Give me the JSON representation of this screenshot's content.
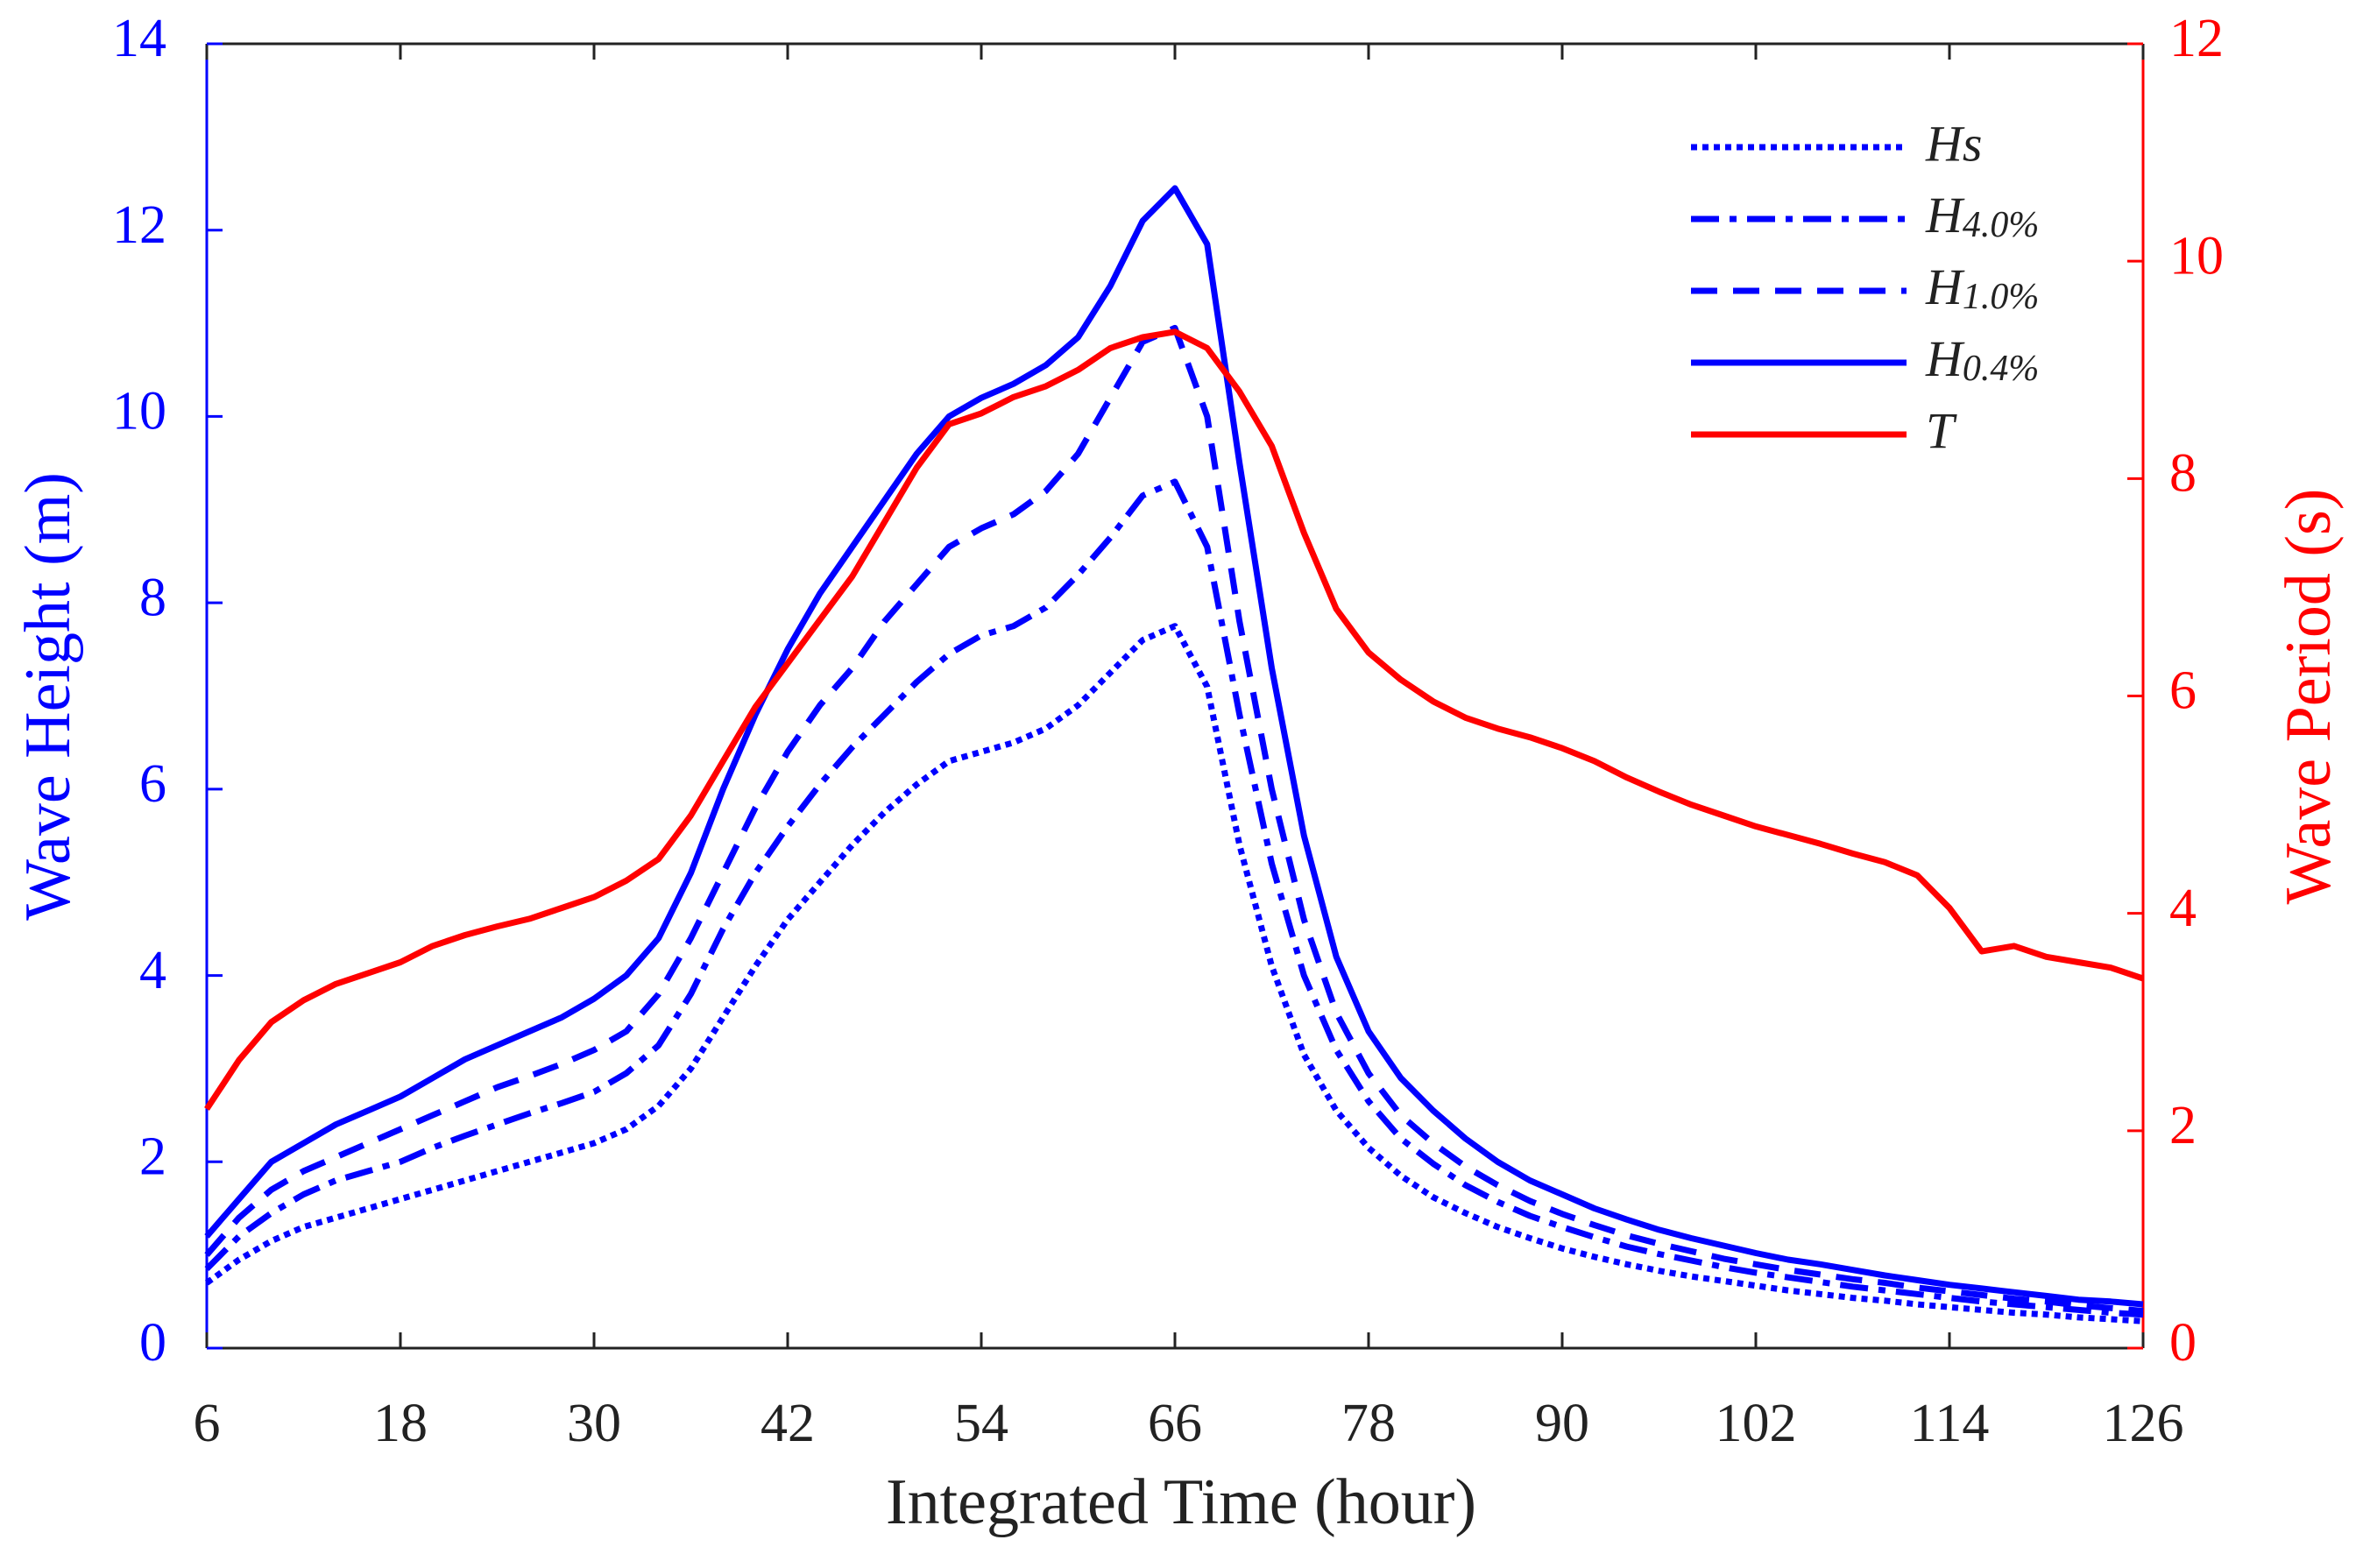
{
  "chart_data": {
    "type": "line",
    "xlabel": "Integrated Time (hour)",
    "ylabel": "Wave Height (m)",
    "y2label": "Wave Period (s)",
    "xlim": [
      6,
      126
    ],
    "xticks": [
      6,
      18,
      30,
      42,
      54,
      66,
      78,
      90,
      102,
      114,
      126
    ],
    "ylim": [
      0,
      14
    ],
    "yticks": [
      0,
      2,
      4,
      6,
      8,
      10,
      12,
      14
    ],
    "y2lim": [
      0,
      12
    ],
    "y2ticks": [
      0,
      2,
      4,
      6,
      8,
      10,
      12
    ],
    "ylabel_color": "#0000ff",
    "y2label_color": "#ff0000",
    "legend": "upper right",
    "grid": false,
    "x": [
      6,
      8,
      10,
      12,
      14,
      16,
      18,
      20,
      22,
      24,
      26,
      28,
      30,
      32,
      34,
      36,
      38,
      40,
      42,
      44,
      46,
      48,
      50,
      52,
      54,
      56,
      58,
      60,
      62,
      64,
      66,
      68,
      70,
      72,
      74,
      76,
      78,
      80,
      82,
      84,
      86,
      88,
      90,
      92,
      94,
      96,
      98,
      100,
      102,
      104,
      106,
      108,
      110,
      112,
      114,
      116,
      118,
      120,
      122,
      124,
      126
    ],
    "series": [
      {
        "name": "Hs",
        "color": "#0000ff",
        "dash": "dotted",
        "axis": "y",
        "values": [
          0.7,
          0.95,
          1.15,
          1.3,
          1.4,
          1.5,
          1.6,
          1.7,
          1.8,
          1.9,
          2.0,
          2.1,
          2.2,
          2.35,
          2.6,
          3.0,
          3.55,
          4.1,
          4.6,
          5.0,
          5.4,
          5.75,
          6.05,
          6.3,
          6.4,
          6.5,
          6.65,
          6.9,
          7.25,
          7.6,
          7.75,
          7.1,
          5.4,
          4.1,
          3.15,
          2.55,
          2.15,
          1.85,
          1.62,
          1.45,
          1.3,
          1.18,
          1.07,
          0.98,
          0.9,
          0.83,
          0.77,
          0.72,
          0.67,
          0.62,
          0.58,
          0.54,
          0.51,
          0.47,
          0.44,
          0.41,
          0.38,
          0.36,
          0.33,
          0.31,
          0.29
        ]
      },
      {
        "name": "H4.0%",
        "color": "#0000ff",
        "dash": "dashdot",
        "axis": "y",
        "values": [
          0.85,
          1.2,
          1.45,
          1.65,
          1.8,
          1.9,
          2.0,
          2.15,
          2.28,
          2.4,
          2.52,
          2.63,
          2.75,
          2.95,
          3.25,
          3.8,
          4.5,
          5.1,
          5.6,
          6.05,
          6.45,
          6.8,
          7.15,
          7.45,
          7.65,
          7.75,
          7.95,
          8.3,
          8.7,
          9.15,
          9.3,
          8.6,
          6.8,
          5.2,
          4.0,
          3.2,
          2.65,
          2.25,
          1.98,
          1.75,
          1.57,
          1.42,
          1.3,
          1.19,
          1.09,
          1.01,
          0.94,
          0.87,
          0.81,
          0.76,
          0.71,
          0.66,
          0.62,
          0.58,
          0.54,
          0.5,
          0.47,
          0.44,
          0.41,
          0.38,
          0.36
        ]
      },
      {
        "name": "H1.0%",
        "color": "#0000ff",
        "dash": "dashed",
        "axis": "y",
        "values": [
          1.0,
          1.4,
          1.7,
          1.9,
          2.05,
          2.2,
          2.35,
          2.5,
          2.65,
          2.8,
          2.92,
          3.05,
          3.2,
          3.4,
          3.8,
          4.4,
          5.1,
          5.8,
          6.4,
          6.9,
          7.3,
          7.8,
          8.2,
          8.6,
          8.8,
          8.95,
          9.2,
          9.6,
          10.2,
          10.8,
          10.95,
          10.0,
          7.8,
          6.0,
          4.6,
          3.6,
          2.95,
          2.5,
          2.2,
          1.95,
          1.75,
          1.58,
          1.44,
          1.32,
          1.21,
          1.12,
          1.04,
          0.96,
          0.9,
          0.84,
          0.79,
          0.74,
          0.7,
          0.65,
          0.61,
          0.57,
          0.53,
          0.5,
          0.46,
          0.43,
          0.4
        ]
      },
      {
        "name": "H0.4%",
        "color": "#0000ff",
        "dash": "solid",
        "axis": "y",
        "values": [
          1.2,
          1.6,
          2.0,
          2.2,
          2.4,
          2.55,
          2.7,
          2.9,
          3.1,
          3.25,
          3.4,
          3.55,
          3.75,
          4.0,
          4.4,
          5.1,
          6.0,
          6.8,
          7.5,
          8.1,
          8.6,
          9.1,
          9.6,
          10.0,
          10.2,
          10.35,
          10.55,
          10.85,
          11.4,
          12.1,
          12.45,
          11.85,
          9.5,
          7.3,
          5.5,
          4.2,
          3.4,
          2.9,
          2.55,
          2.25,
          2.0,
          1.8,
          1.65,
          1.5,
          1.38,
          1.27,
          1.18,
          1.1,
          1.02,
          0.95,
          0.9,
          0.84,
          0.78,
          0.73,
          0.68,
          0.64,
          0.6,
          0.56,
          0.52,
          0.5,
          0.47
        ]
      },
      {
        "name": "T",
        "color": "#ff0000",
        "dash": "solid",
        "axis": "y2",
        "values": [
          2.2,
          2.65,
          3.0,
          3.2,
          3.35,
          3.45,
          3.55,
          3.7,
          3.8,
          3.88,
          3.95,
          4.05,
          4.15,
          4.3,
          4.5,
          4.9,
          5.4,
          5.9,
          6.3,
          6.7,
          7.1,
          7.6,
          8.1,
          8.5,
          8.6,
          8.75,
          8.85,
          9.0,
          9.2,
          9.3,
          9.35,
          9.2,
          8.8,
          8.3,
          7.5,
          6.8,
          6.4,
          6.15,
          5.95,
          5.8,
          5.7,
          5.62,
          5.52,
          5.4,
          5.25,
          5.12,
          5.0,
          4.9,
          4.8,
          4.72,
          4.64,
          4.55,
          4.47,
          4.35,
          4.05,
          3.65,
          3.7,
          3.6,
          3.55,
          3.5,
          3.4
        ]
      }
    ]
  }
}
